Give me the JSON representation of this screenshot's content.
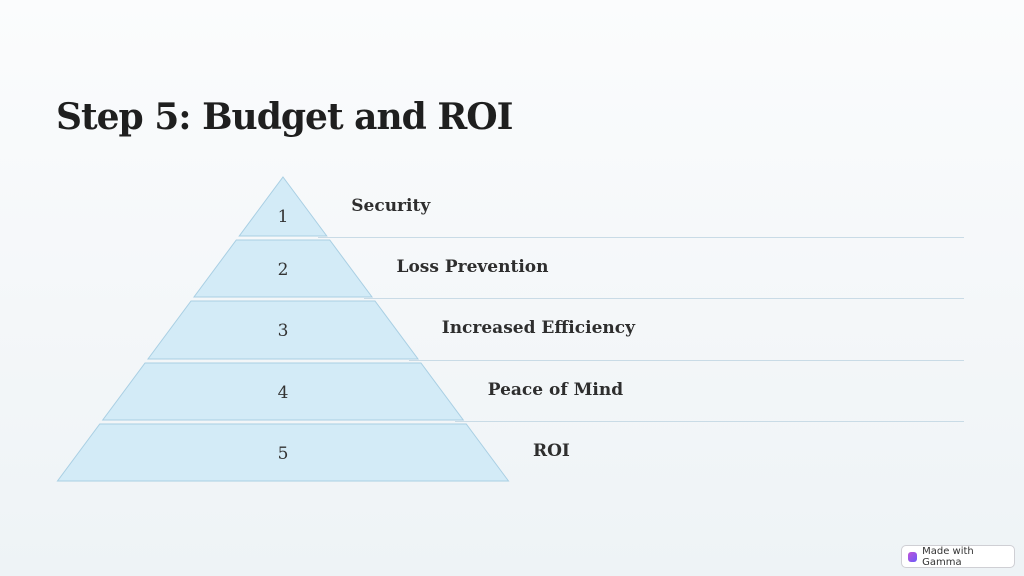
{
  "slide": {
    "title": "Step 5: Budget and ROI"
  },
  "pyramid": {
    "fill_color": "#d3ebf7",
    "stroke_color": "#a9cfe3",
    "levels": [
      {
        "number": "1",
        "label": "Security"
      },
      {
        "number": "2",
        "label": "Loss Prevention"
      },
      {
        "number": "3",
        "label": "Increased Efficiency"
      },
      {
        "number": "4",
        "label": "Peace of Mind"
      },
      {
        "number": "5",
        "label": "ROI"
      }
    ]
  },
  "badge": {
    "label": "Made with Gamma",
    "icon": "gamma-logo-icon"
  }
}
